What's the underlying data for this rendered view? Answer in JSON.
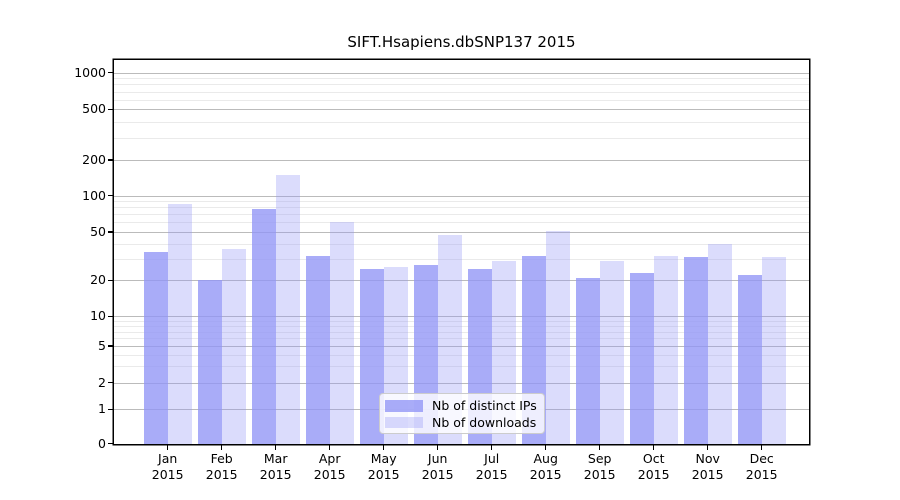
{
  "chart_data": {
    "type": "bar",
    "title": "SIFT.Hsapiens.dbSNP137 2015",
    "categories": [
      "Jan",
      "Feb",
      "Mar",
      "Apr",
      "May",
      "Jun",
      "Jul",
      "Aug",
      "Sep",
      "Oct",
      "Nov",
      "Dec"
    ],
    "x_tick_label_line2": "2015",
    "series": [
      {
        "name": "Nb of distinct IPs",
        "color": "#9195f6",
        "opacity": 0.78,
        "rendered_color": "#a9acf8",
        "values": [
          34,
          20,
          78,
          32,
          25,
          27,
          25,
          32,
          21,
          23,
          31,
          22
        ]
      },
      {
        "name": "Nb of downloads",
        "color": "#9195f6",
        "opacity": 0.33,
        "rendered_color": "#dbdefb",
        "values": [
          85,
          36,
          150,
          60,
          26,
          47,
          29,
          51,
          29,
          32,
          40,
          31
        ]
      }
    ],
    "y_axis": {
      "scale": "symlog",
      "tick_values": [
        0,
        1,
        2,
        5,
        10,
        20,
        50,
        100,
        200,
        500,
        1000
      ],
      "tick_labels": [
        "0",
        "1",
        "2",
        "5",
        "10",
        "20",
        "50",
        "100",
        "200",
        "500",
        "1000"
      ],
      "minor_gridline_values": [
        3,
        4,
        6,
        7,
        8,
        9,
        30,
        40,
        60,
        70,
        80,
        90,
        300,
        400,
        600,
        700,
        800,
        900
      ]
    },
    "legend": {
      "position": "lower center",
      "entries": [
        "Nb of distinct IPs",
        "Nb of downloads"
      ]
    },
    "grid": true,
    "colors": {
      "major_gridline": "#bbbbbb",
      "minor_gridline": "#eaeaea",
      "axis": "#000000",
      "legend_border": "#cccccc"
    }
  }
}
